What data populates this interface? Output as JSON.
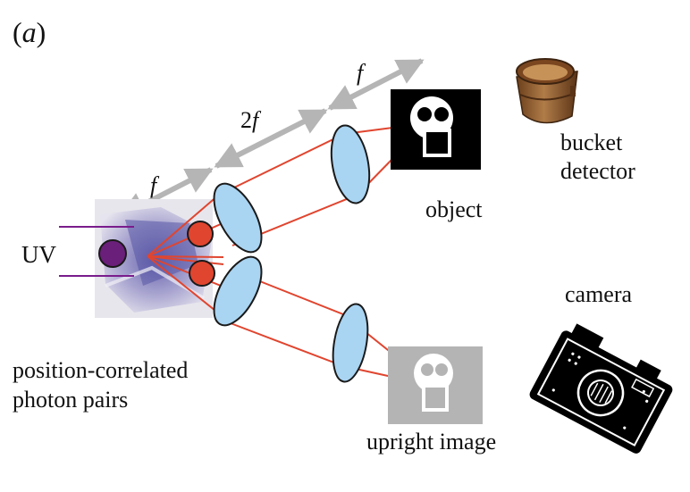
{
  "figure": {
    "panel_label_open": "(",
    "panel_label_letter": "a",
    "panel_label_close": ")",
    "labels": {
      "f_first": "f",
      "two_f_number": "2",
      "two_f_letter": "f",
      "f_second": "f",
      "uv": "UV",
      "object": "object",
      "bucket_line1": "bucket",
      "bucket_line2": "detector",
      "camera": "camera",
      "pairs_line1": "position-correlated",
      "pairs_line2": "photon pairs",
      "upright": "upright image"
    },
    "colors": {
      "ray": "#e0452f",
      "lens_fill": "#a9d4f2",
      "photon": "#e0452f",
      "uv_source": "#6a1f7a",
      "uv_beam": "#7a1c8c",
      "arrow_gray": "#b5b5b5",
      "crystal": "#8c86bd",
      "object_bg": "#000000",
      "image_bg": "#b4b4b4",
      "bucket": "#8a5a2c"
    },
    "icons": [
      "bucket-icon",
      "camera-icon",
      "nonlinear-crystal"
    ]
  }
}
